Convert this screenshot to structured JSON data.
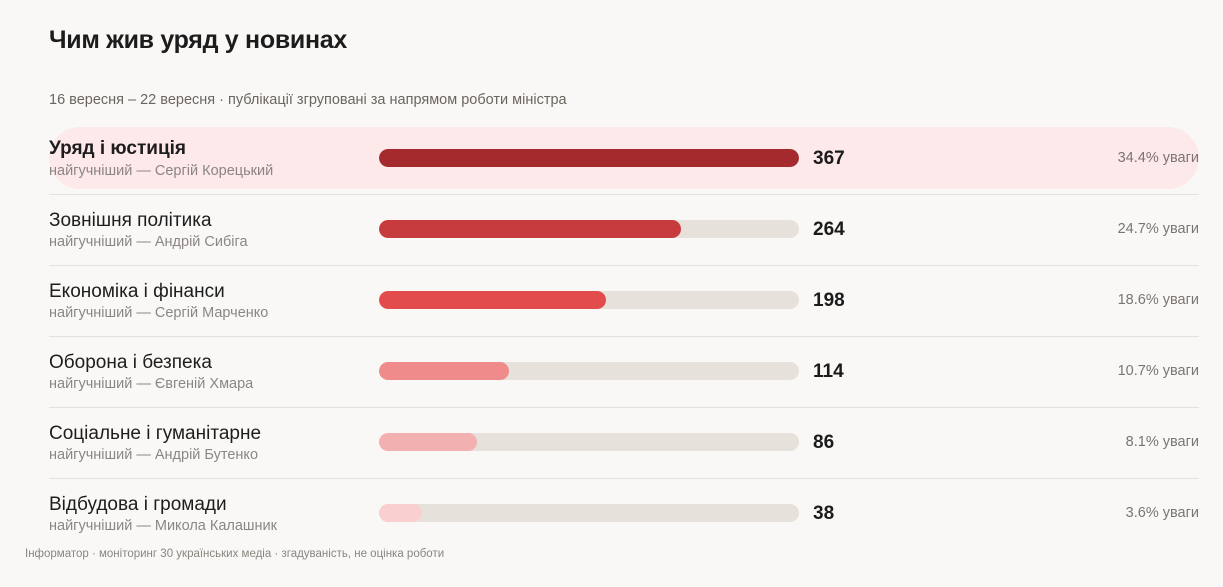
{
  "title": "Чим жив уряд у новинах",
  "subtitle": "16 вересня – 22 вересня · публікації згруповані за напрямом роботи міністра",
  "footer": "Інформатор · моніторинг 30 українських медіа · згадуваність, не оцінка роботи",
  "colors": {
    "background": "#faf8f6",
    "highlight_row": "#fde9e9",
    "bar_track": "#e6e1da",
    "bars": [
      "#a52a2e",
      "#c73a3d",
      "#e24c4c",
      "#ef8b8b",
      "#f3b0b0",
      "#f9cfcf"
    ]
  },
  "chart_data": {
    "type": "bar",
    "orientation": "horizontal",
    "title": "Чим жив уряд у новинах",
    "subtitle": "16 вересня – 22 вересня · публікації згруповані за напрямом роботи міністра",
    "xlim": [
      0,
      367
    ],
    "grid": false,
    "categories": [
      "Уряд і юстиція",
      "Зовнішня політика",
      "Економіка і фінанси",
      "Оборона і безпека",
      "Соціальне і гуманітарне",
      "Відбудова і громади"
    ],
    "values": [
      367,
      264,
      198,
      114,
      86,
      38
    ],
    "rows": [
      {
        "label": "Уряд і юстиція",
        "sub": "найгучніший — Сергій Корецький",
        "value": "367",
        "share": "34.4% уваги",
        "highlight": true
      },
      {
        "label": "Зовнішня політика",
        "sub": "найгучніший — Андрій Сибіга",
        "value": "264",
        "share": "24.7% уваги",
        "highlight": false
      },
      {
        "label": "Економіка і фінанси",
        "sub": "найгучніший — Сергій Марченко",
        "value": "198",
        "share": "18.6% уваги",
        "highlight": false
      },
      {
        "label": "Оборона і безпека",
        "sub": "найгучніший — Євгеній Хмара",
        "value": "114",
        "share": "10.7% уваги",
        "highlight": false
      },
      {
        "label": "Соціальне і гуманітарне",
        "sub": "найгучніший — Андрій Бутенко",
        "value": "86",
        "share": "8.1% уваги",
        "highlight": false
      },
      {
        "label": "Відбудова і громади",
        "sub": "найгучніший — Микола Калашник",
        "value": "38",
        "share": "3.6% уваги",
        "highlight": false
      }
    ]
  }
}
